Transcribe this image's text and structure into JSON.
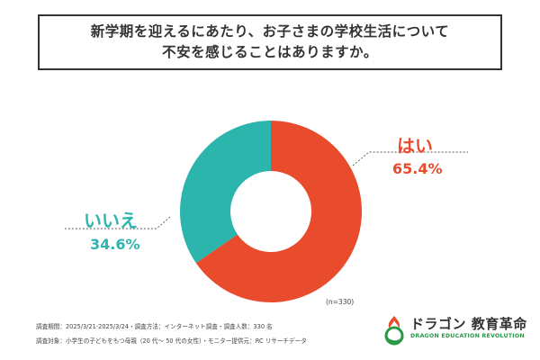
{
  "title": {
    "line1": "新学期を迎えるにあたり、お子さまの学校生活について",
    "line2": "不安を感じることはありますか。"
  },
  "colors": {
    "yes": "#e94b2d",
    "no": "#2bb5ad",
    "leader": "#555555"
  },
  "chart_data": {
    "type": "pie",
    "categories": [
      "はい",
      "いいえ"
    ],
    "values": [
      65.4,
      34.6
    ],
    "value_labels": [
      "65.4%",
      "34.6%"
    ],
    "donut": true,
    "sample": "(n=330)"
  },
  "footer": {
    "line1": "調査期間：2025/3/21-2025/3/24・調査方法：インターネット調査・調査人数：330 名",
    "line2": "調査対象：小学生の子どもをもつ母親（20 代〜 50 代の女性）・モニター提供元：RC リサーチデータ"
  },
  "logo": {
    "name": "ドラゴン 教育革命",
    "subtitle": "DRAGON EDUCATION REVOLUTION",
    "icon": "dragon-logo-icon"
  }
}
